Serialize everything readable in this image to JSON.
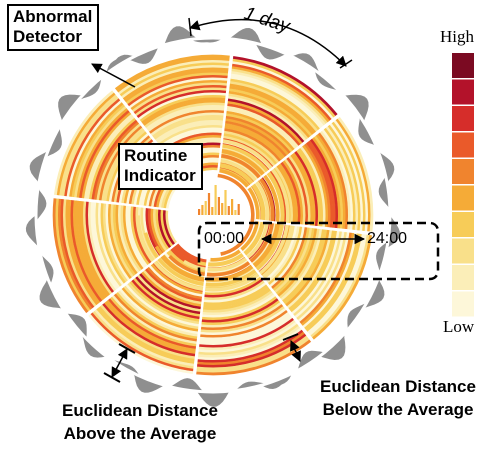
{
  "labels": {
    "abnormal_detector": [
      "Abnormal",
      "Detector"
    ],
    "routine_indicator": [
      "Routine",
      "Indicator"
    ],
    "one_day": "1 day",
    "time_start": "00:00",
    "time_end": "24:00",
    "distance_above": [
      "Euclidean Distance",
      "Above the Average"
    ],
    "distance_below": [
      "Euclidean Distance",
      "Below the Average"
    ]
  },
  "color_scale": {
    "high_label": "High",
    "low_label": "Low",
    "colors": [
      "#7b0a22",
      "#b3122a",
      "#d62d2a",
      "#ea5a2a",
      "#f0842e",
      "#f5ab37",
      "#f7cc58",
      "#f9e08a",
      "#fbeeb8",
      "#fdf7d9"
    ]
  },
  "palette": {
    "glyph_gray": "#8f8f8f",
    "ring_white": "#ffffff"
  }
}
